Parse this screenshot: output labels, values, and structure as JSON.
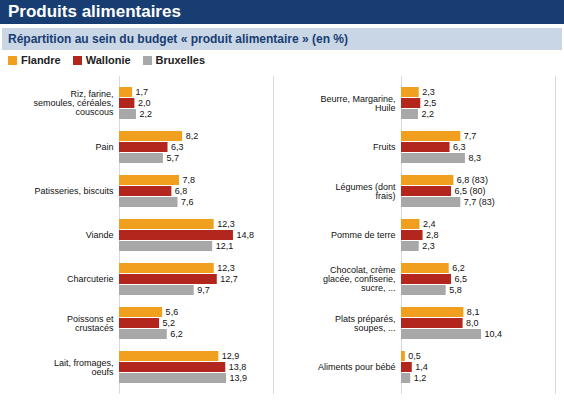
{
  "chart_data": [
    {
      "type": "bar",
      "orientation": "horizontal",
      "title": "Produits alimentaires",
      "subtitle": "Répartition au sein du budget « produit alimentaire » (en %)",
      "legend": "top",
      "data_labels": true,
      "tick_labels": "y",
      "xlim": [
        0,
        20
      ],
      "xticks": [],
      "categories": [
        "Riz, farine, semoules, céréales, couscous",
        "Pain",
        "Patisseries, biscuits",
        "Viande",
        "Charcuterie",
        "Poissons et crustacés",
        "Lait, fromages, oeufs"
      ],
      "series": [
        {
          "name": "Flandre",
          "color": "#f0a01e",
          "values": [
            1.7,
            8.2,
            7.8,
            12.3,
            12.3,
            5.6,
            12.9
          ],
          "value_labels": [
            "1,7",
            "8,2",
            "7,8",
            "12,3",
            "12,3",
            "5,6",
            "12,9"
          ]
        },
        {
          "name": "Wallonie",
          "color": "#b3261e",
          "values": [
            2.0,
            6.3,
            6.8,
            14.8,
            12.7,
            5.2,
            13.8
          ],
          "value_labels": [
            "2,0",
            "6,3",
            "6,8",
            "14,8",
            "12,7",
            "5,2",
            "13,8"
          ]
        },
        {
          "name": "Bruxelles",
          "color": "#a8a8a8",
          "values": [
            2.2,
            5.7,
            7.6,
            12.1,
            9.7,
            6.2,
            13.9
          ],
          "value_labels": [
            "2,2",
            "5,7",
            "7,6",
            "12,1",
            "9,7",
            "6,2",
            "13,9"
          ]
        }
      ]
    },
    {
      "type": "bar",
      "orientation": "horizontal",
      "data_labels": true,
      "tick_labels": "y",
      "xlim": [
        0,
        20
      ],
      "xticks": [],
      "categories": [
        "Beurre, Margarine, Huile",
        "Fruits",
        "Légumes (dont frais)",
        "Pomme de terre",
        "Chocolat, crème glacée, confiserie, sucre, ...",
        "Plats préparés, soupes, ...",
        "Aliments pour bébé"
      ],
      "series": [
        {
          "name": "Flandre",
          "color": "#f0a01e",
          "values": [
            2.3,
            7.7,
            6.8,
            2.4,
            6.2,
            8.1,
            0.5
          ],
          "value_labels": [
            "2,3",
            "7,7",
            "6,8 (83)",
            "2,4",
            "6,2",
            "8,1",
            "0,5"
          ]
        },
        {
          "name": "Wallonie",
          "color": "#b3261e",
          "values": [
            2.5,
            6.3,
            6.5,
            2.8,
            6.5,
            8.0,
            1.4
          ],
          "value_labels": [
            "2,5",
            "6,3",
            "6,5 (80)",
            "2,8",
            "6,5",
            "8,0",
            "1,4"
          ]
        },
        {
          "name": "Bruxelles",
          "color": "#a8a8a8",
          "values": [
            2.2,
            8.3,
            7.7,
            2.3,
            5.8,
            10.4,
            1.2
          ],
          "value_labels": [
            "2,2",
            "8,3",
            "7,7 (83)",
            "2,3",
            "5,8",
            "10,4",
            "1,2"
          ]
        }
      ]
    }
  ]
}
